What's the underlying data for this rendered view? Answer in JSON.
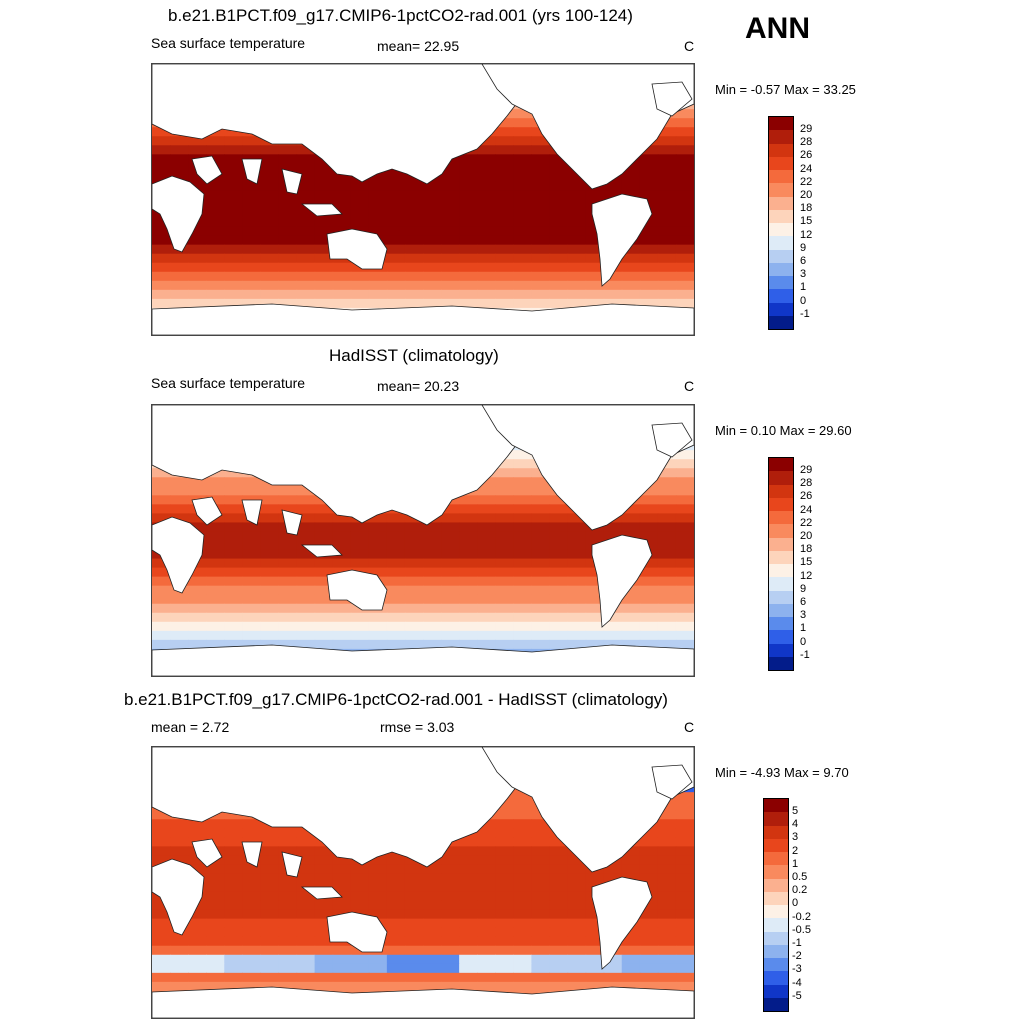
{
  "season": "ANN",
  "panels": [
    {
      "title": "b.e21.B1PCT.f09_g17.CMIP6-1pctCO2-rad.001 (yrs 100-124)",
      "left_label": "Sea surface temperature",
      "mid_label": "mean=  22.95",
      "unit": "C",
      "minmax": "Min =  -0.57 Max =  33.25",
      "levels": [
        "29",
        "28",
        "26",
        "24",
        "22",
        "20",
        "18",
        "15",
        "12",
        "9",
        "6",
        "3",
        "1",
        "0",
        "-1"
      ],
      "colors": [
        "#8b0000",
        "#b01e0b",
        "#d23510",
        "#e8461c",
        "#f46a3c",
        "#f98a5e",
        "#fbb08f",
        "#fdd4bb",
        "#fdf1e6",
        "#deebf7",
        "#b7cff2",
        "#8db2ee",
        "#5a8bec",
        "#2f5fe8",
        "#1036c8",
        "#031c8a"
      ],
      "color_scheme": "warm"
    },
    {
      "title": "HadISST (climatology)",
      "left_label": "Sea surface temperature",
      "mid_label": "mean=  20.23",
      "unit": "C",
      "minmax": "Min =   0.10 Max =  29.60",
      "levels": [
        "29",
        "28",
        "26",
        "24",
        "22",
        "20",
        "18",
        "15",
        "12",
        "9",
        "6",
        "3",
        "1",
        "0",
        "-1"
      ],
      "colors": [
        "#8b0000",
        "#b01e0b",
        "#d23510",
        "#e8461c",
        "#f46a3c",
        "#f98a5e",
        "#fbb08f",
        "#fdd4bb",
        "#fdf1e6",
        "#deebf7",
        "#b7cff2",
        "#8db2ee",
        "#5a8bec",
        "#2f5fe8",
        "#1036c8",
        "#031c8a"
      ],
      "color_scheme": "obs"
    },
    {
      "title": "b.e21.B1PCT.f09_g17.CMIP6-1pctCO2-rad.001 - HadISST (climatology)",
      "left_label": "mean =   2.72",
      "mid_label": "rmse =   3.03",
      "unit": "C",
      "minmax": "Min =  -4.93 Max =   9.70",
      "levels": [
        "5",
        "4",
        "3",
        "2",
        "1",
        "0.5",
        "0.2",
        "0",
        "-0.2",
        "-0.5",
        "-1",
        "-2",
        "-3",
        "-4",
        "-5"
      ],
      "colors": [
        "#8b0000",
        "#b01e0b",
        "#d23510",
        "#e8461c",
        "#f46a3c",
        "#f98a5e",
        "#fbb08f",
        "#fdd4bb",
        "#fdf1e6",
        "#deebf7",
        "#b7cff2",
        "#8db2ee",
        "#5a8bec",
        "#2f5fe8",
        "#1036c8",
        "#031c8a"
      ],
      "color_scheme": "diff"
    }
  ]
}
